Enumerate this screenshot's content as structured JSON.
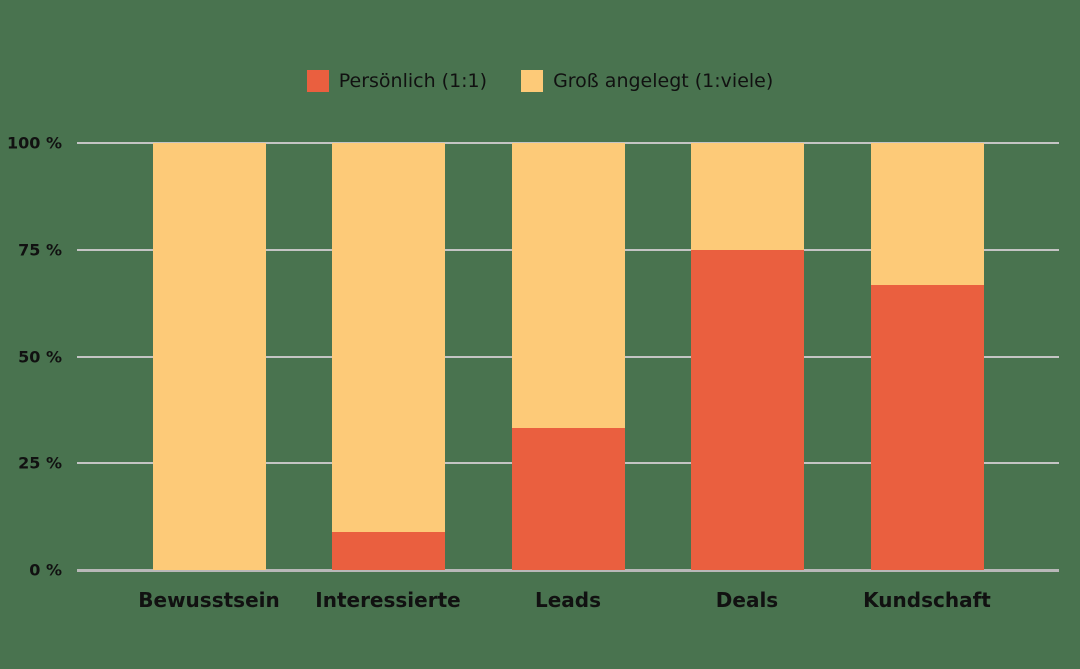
{
  "chart_data": {
    "type": "bar",
    "stacked": true,
    "normalized": true,
    "title": "",
    "xlabel": "",
    "ylabel": "",
    "categories": [
      "Bewusstsein",
      "Interessierte",
      "Leads",
      "Deals",
      "Kundschaft"
    ],
    "series": [
      {
        "name": "Persönlich (1:1)",
        "color": "#ea5f3f",
        "values": [
          0,
          9,
          33.3,
          75,
          66.7
        ]
      },
      {
        "name": "Groß angelegt (1:viele)",
        "color": "#fdca78",
        "values": [
          100,
          91,
          66.7,
          25,
          33.3
        ]
      }
    ],
    "ylim": [
      0,
      100
    ],
    "yticks": [
      "0 %",
      "25 %",
      "50 %",
      "75 %",
      "100 %"
    ],
    "grid": true,
    "legend_position": "top"
  },
  "legend": {
    "items": [
      {
        "label": "Persönlich (1:1)",
        "color": "#ea5f3f"
      },
      {
        "label": "Groß angelegt (1:viele)",
        "color": "#fdca78"
      }
    ]
  },
  "colors": {
    "background": "#49734f",
    "gridline": "#c4c4c4"
  }
}
